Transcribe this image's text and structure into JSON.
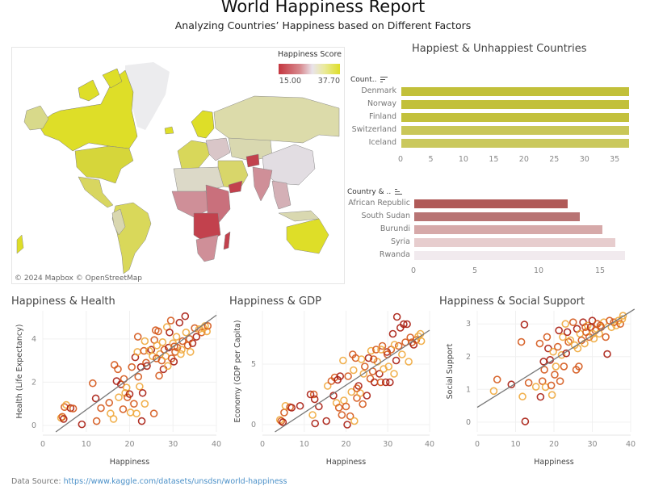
{
  "header": {
    "title": "World Happiness Report",
    "subtitle": "Analyzing Countries’ Happiness based on Different Factors"
  },
  "map": {
    "legend_title": "Happiness Score",
    "legend_min": "15.00",
    "legend_max": "37.70",
    "attribution": "© 2024 Mapbox  © OpenStreetMap",
    "colors": {
      "high": "#dede28",
      "midhigh": "#d8d98a",
      "mid": "#e3dfe3",
      "midlow": "#cf8f98",
      "low": "#c2414d",
      "nodata": "#ececee"
    }
  },
  "footer": {
    "label": "Data Source: ",
    "link": "https://www.kaggle.com/datasets/unsdsn/world-happiness"
  },
  "chart_data": [
    {
      "type": "bar",
      "title": "Happiest & Unhappiest Countries",
      "header": "Count..",
      "categories": [
        "Denmark",
        "Norway",
        "Finland",
        "Switzerland",
        "Iceland"
      ],
      "values": [
        37.7,
        37.7,
        37.7,
        37.6,
        37.6
      ],
      "xlim": [
        0,
        37.7
      ],
      "xticks": [
        "0",
        "5",
        "10",
        "15",
        "20",
        "25",
        "30",
        "35"
      ],
      "colors": [
        "#c2c03a",
        "#c2c03a",
        "#c3c13c",
        "#c9c758",
        "#cac85c"
      ]
    },
    {
      "type": "bar",
      "header": "Country & ..",
      "categories": [
        "African Republic",
        "South Sudan",
        "Burundi",
        "Syria",
        "Rwanda"
      ],
      "values": [
        12.5,
        13.5,
        15.3,
        16.4,
        17.2
      ],
      "xlim": [
        0,
        17.2
      ],
      "xticks": [
        "0",
        "5",
        "10",
        "15"
      ],
      "colors": [
        "#b05a58",
        "#b87474",
        "#d6a9a9",
        "#e7cdce",
        "#f1eaee"
      ]
    },
    {
      "type": "scatter",
      "title": "Happiness & Health",
      "xlabel": "Happiness",
      "ylabel": "Health (Life Expectancy)",
      "xlim": [
        0,
        40
      ],
      "ylim": [
        -0.3,
        5.3
      ],
      "xticks": [
        "0",
        "10",
        "20",
        "30",
        "40"
      ],
      "yticks": [
        "0",
        "2",
        "4"
      ],
      "trend": [
        [
          3,
          -0.3
        ],
        [
          40,
          5.1
        ]
      ],
      "points": [
        [
          4.2,
          0.35,
          2
        ],
        [
          4.5,
          0.4,
          1
        ],
        [
          4.8,
          0.3,
          0
        ],
        [
          5,
          0.85,
          1
        ],
        [
          5.4,
          0.95,
          2
        ],
        [
          6.4,
          0.8,
          0
        ],
        [
          7,
          0.78,
          1
        ],
        [
          9,
          0.05,
          0
        ],
        [
          11.5,
          1.95,
          1
        ],
        [
          12.2,
          1.25,
          0
        ],
        [
          12.4,
          0.2,
          1
        ],
        [
          13.4,
          0.8,
          1
        ],
        [
          15.3,
          1.05,
          1
        ],
        [
          15.6,
          0.55,
          2
        ],
        [
          16.3,
          0.3,
          2
        ],
        [
          16.5,
          2.8,
          1
        ],
        [
          17,
          2.05,
          0
        ],
        [
          17.3,
          2.6,
          1
        ],
        [
          17.5,
          1.3,
          2
        ],
        [
          18,
          1.9,
          0
        ],
        [
          18.5,
          0.75,
          1
        ],
        [
          18.7,
          2.15,
          1
        ],
        [
          19,
          1.5,
          2
        ],
        [
          19.3,
          1.75,
          2
        ],
        [
          19.5,
          1.3,
          1
        ],
        [
          20,
          1.45,
          0
        ],
        [
          20.2,
          0.6,
          2
        ],
        [
          20.5,
          2.7,
          1
        ],
        [
          21,
          1.0,
          1
        ],
        [
          21.3,
          3.15,
          0
        ],
        [
          21.6,
          0.55,
          2
        ],
        [
          21.8,
          3.4,
          2
        ],
        [
          21.9,
          4.1,
          1
        ],
        [
          22,
          2.25,
          1
        ],
        [
          22.3,
          1.8,
          2
        ],
        [
          22.6,
          2.7,
          0
        ],
        [
          22.8,
          0.2,
          0
        ],
        [
          23,
          1.5,
          0
        ],
        [
          23.3,
          3.45,
          1
        ],
        [
          23.5,
          3.9,
          2
        ],
        [
          23.5,
          1.0,
          2
        ],
        [
          23.8,
          2.9,
          1
        ],
        [
          24,
          2.75,
          0
        ],
        [
          25,
          3.5,
          0
        ],
        [
          25.3,
          3.2,
          2
        ],
        [
          25.6,
          0.55,
          1
        ],
        [
          25.7,
          3.95,
          1
        ],
        [
          26,
          4.4,
          1
        ],
        [
          26.3,
          3.7,
          2
        ],
        [
          26.6,
          4.35,
          1
        ],
        [
          26.8,
          2.3,
          1
        ],
        [
          27,
          3.3,
          2
        ],
        [
          27.4,
          3.0,
          1
        ],
        [
          27.8,
          2.6,
          0
        ],
        [
          28,
          3.5,
          1
        ],
        [
          28.3,
          3.2,
          2
        ],
        [
          28.6,
          4.55,
          2
        ],
        [
          28.8,
          2.75,
          2
        ],
        [
          29,
          3.6,
          0
        ],
        [
          29.2,
          4.3,
          0
        ],
        [
          29.5,
          4.85,
          1
        ],
        [
          29.7,
          3.1,
          1
        ],
        [
          30,
          3.8,
          2
        ],
        [
          30.2,
          2.95,
          0
        ],
        [
          30.5,
          3.4,
          1
        ],
        [
          30.8,
          4.1,
          2
        ],
        [
          31,
          3.6,
          1
        ],
        [
          31.5,
          4.75,
          0
        ],
        [
          31.8,
          3.3,
          2
        ],
        [
          32.2,
          3.9,
          1
        ],
        [
          32.8,
          5.05,
          0
        ],
        [
          33,
          4.3,
          2
        ],
        [
          33.4,
          3.7,
          1
        ],
        [
          34,
          3.4,
          2
        ],
        [
          34.5,
          3.8,
          0
        ],
        [
          35,
          4.5,
          1
        ],
        [
          35.4,
          4.1,
          0
        ],
        [
          36,
          4.45,
          2
        ],
        [
          36.6,
          4.3,
          1
        ],
        [
          37,
          4.5,
          2
        ],
        [
          37.4,
          4.6,
          2
        ],
        [
          37.8,
          4.35,
          2
        ],
        [
          38,
          4.6,
          1
        ],
        [
          24.5,
          3.45,
          2
        ],
        [
          26.2,
          3.1,
          1
        ],
        [
          27.6,
          3.85,
          2
        ],
        [
          30.3,
          3.65,
          1
        ],
        [
          32,
          3.5,
          2
        ],
        [
          33.8,
          4.0,
          1
        ]
      ]
    },
    {
      "type": "scatter",
      "title": "Happiness & GDP",
      "xlabel": "Happiness",
      "ylabel": "Economy (GDP per Capita)",
      "xlim": [
        0,
        40
      ],
      "ylim": [
        -0.6,
        9.4
      ],
      "xticks": [
        "0",
        "10",
        "20",
        "30",
        "40"
      ],
      "yticks": [
        "0",
        "5"
      ],
      "trend": [
        [
          3,
          -0.6
        ],
        [
          40,
          7.8
        ]
      ],
      "points": [
        [
          4.2,
          0.4,
          2
        ],
        [
          4.5,
          0.3,
          1
        ],
        [
          4.9,
          0.2,
          0
        ],
        [
          5.2,
          1.0,
          1
        ],
        [
          5.5,
          1.55,
          2
        ],
        [
          6.6,
          1.45,
          1
        ],
        [
          7,
          1.4,
          0
        ],
        [
          9,
          1.55,
          0
        ],
        [
          11.5,
          2.5,
          0
        ],
        [
          12,
          0.8,
          2
        ],
        [
          12.3,
          2.5,
          1
        ],
        [
          12.5,
          2.1,
          0
        ],
        [
          12.6,
          0.1,
          0
        ],
        [
          13.5,
          1.5,
          0
        ],
        [
          15.3,
          0.3,
          0
        ],
        [
          15.6,
          3.2,
          2
        ],
        [
          16.5,
          3.6,
          1
        ],
        [
          17,
          2.4,
          0
        ],
        [
          17.3,
          3.9,
          1
        ],
        [
          17.7,
          1.8,
          2
        ],
        [
          18,
          3.7,
          0
        ],
        [
          18.3,
          1.4,
          1
        ],
        [
          18.6,
          4.0,
          0
        ],
        [
          19,
          0.8,
          1
        ],
        [
          19.3,
          5.3,
          2
        ],
        [
          19.5,
          2.0,
          2
        ],
        [
          20,
          1.5,
          1
        ],
        [
          20.3,
          0.0,
          0
        ],
        [
          20.5,
          4.0,
          1
        ],
        [
          21,
          0.7,
          1
        ],
        [
          21.3,
          2.7,
          2
        ],
        [
          21.6,
          5.8,
          1
        ],
        [
          21.8,
          4.5,
          2
        ],
        [
          22,
          0.3,
          2
        ],
        [
          22.3,
          5.5,
          1
        ],
        [
          22.6,
          2.2,
          1
        ],
        [
          23,
          3.2,
          0
        ],
        [
          23.4,
          2.6,
          2
        ],
        [
          23.7,
          5.4,
          2
        ],
        [
          24,
          1.7,
          1
        ],
        [
          24.5,
          4.8,
          1
        ],
        [
          25,
          2.4,
          0
        ],
        [
          25.4,
          5.5,
          0
        ],
        [
          25.8,
          3.8,
          1
        ],
        [
          26,
          6.1,
          2
        ],
        [
          26.4,
          4.4,
          1
        ],
        [
          26.8,
          3.5,
          0
        ],
        [
          27.2,
          6.2,
          1
        ],
        [
          27.5,
          5.2,
          2
        ],
        [
          28,
          4.2,
          0
        ],
        [
          28.3,
          3.5,
          1
        ],
        [
          28.7,
          6.5,
          1
        ],
        [
          29,
          4.6,
          2
        ],
        [
          29.5,
          3.5,
          0
        ],
        [
          29.8,
          6.0,
          0
        ],
        [
          30.2,
          4.8,
          2
        ],
        [
          30.5,
          3.5,
          0
        ],
        [
          30.8,
          6.2,
          1
        ],
        [
          31.2,
          7.5,
          0
        ],
        [
          31.5,
          4.2,
          2
        ],
        [
          32,
          5.3,
          0
        ],
        [
          32.2,
          8.9,
          0
        ],
        [
          32.6,
          6.5,
          1
        ],
        [
          33,
          8.0,
          0
        ],
        [
          33.4,
          5.8,
          2
        ],
        [
          33.8,
          8.3,
          0
        ],
        [
          34.2,
          6.8,
          1
        ],
        [
          34.6,
          8.3,
          0
        ],
        [
          35,
          5.2,
          2
        ],
        [
          35.4,
          7.2,
          1
        ],
        [
          35.8,
          6.8,
          1
        ],
        [
          36.2,
          6.6,
          0
        ],
        [
          36.8,
          7.0,
          1
        ],
        [
          37.3,
          7.3,
          2
        ],
        [
          37.8,
          7.5,
          2
        ],
        [
          38,
          6.9,
          2
        ],
        [
          22.6,
          3.0,
          1
        ],
        [
          24.2,
          4.2,
          2
        ],
        [
          26.6,
          5.4,
          1
        ],
        [
          28.4,
          6.2,
          2
        ],
        [
          29.9,
          5.8,
          1
        ],
        [
          31.6,
          6.6,
          2
        ]
      ]
    },
    {
      "type": "scatter",
      "title": "Happiness & Social Support",
      "xlabel": "Happiness",
      "ylabel": "Social Support",
      "xlim": [
        0,
        40
      ],
      "ylim": [
        -0.3,
        3.4
      ],
      "xticks": [
        "0",
        "10",
        "20",
        "30",
        "40"
      ],
      "yticks": [
        "0",
        "1",
        "2",
        "3"
      ],
      "trend": [
        [
          0,
          0.45
        ],
        [
          41,
          3.45
        ]
      ],
      "points": [
        [
          4.3,
          0.95,
          2
        ],
        [
          5.2,
          1.3,
          1
        ],
        [
          8.9,
          1.15,
          0
        ],
        [
          11.5,
          2.45,
          1
        ],
        [
          11.8,
          0.78,
          2
        ],
        [
          12.3,
          2.98,
          0
        ],
        [
          12.5,
          0.02,
          0
        ],
        [
          13.4,
          1.2,
          1
        ],
        [
          15.3,
          1.08,
          2
        ],
        [
          16.3,
          2.4,
          1
        ],
        [
          16.5,
          0.77,
          0
        ],
        [
          17,
          1.25,
          1
        ],
        [
          17.3,
          1.85,
          0
        ],
        [
          17.5,
          1.6,
          1
        ],
        [
          17.8,
          1.07,
          2
        ],
        [
          18.2,
          2.6,
          1
        ],
        [
          18.5,
          2.25,
          0
        ],
        [
          19,
          1.9,
          0
        ],
        [
          19.3,
          1.12,
          1
        ],
        [
          19.5,
          0.83,
          2
        ],
        [
          19.8,
          2.15,
          2
        ],
        [
          20.2,
          1.45,
          1
        ],
        [
          20.5,
          1.7,
          2
        ],
        [
          21,
          2.3,
          1
        ],
        [
          21.3,
          2.8,
          0
        ],
        [
          21.6,
          1.25,
          1
        ],
        [
          22,
          2.05,
          2
        ],
        [
          22.3,
          2.6,
          2
        ],
        [
          22.6,
          1.7,
          1
        ],
        [
          23,
          3.0,
          2
        ],
        [
          23.2,
          2.1,
          0
        ],
        [
          23.5,
          2.75,
          0
        ],
        [
          23.8,
          2.45,
          1
        ],
        [
          25,
          3.05,
          1
        ],
        [
          25.4,
          2.35,
          2
        ],
        [
          25.8,
          1.6,
          1
        ],
        [
          26,
          2.85,
          0
        ],
        [
          26.5,
          1.7,
          1
        ],
        [
          26.8,
          2.7,
          2
        ],
        [
          27.2,
          2.5,
          1
        ],
        [
          27.6,
          3.05,
          0
        ],
        [
          28,
          2.4,
          2
        ],
        [
          28.4,
          2.75,
          1
        ],
        [
          28.8,
          2.95,
          2
        ],
        [
          29.2,
          2.6,
          1
        ],
        [
          29.6,
          2.9,
          0
        ],
        [
          30,
          3.1,
          0
        ],
        [
          30.4,
          2.55,
          2
        ],
        [
          30.8,
          2.8,
          1
        ],
        [
          31.3,
          3.0,
          1
        ],
        [
          31.8,
          2.7,
          2
        ],
        [
          32.3,
          2.9,
          1
        ],
        [
          33,
          3.05,
          2
        ],
        [
          33.5,
          2.6,
          1
        ],
        [
          33.9,
          2.08,
          0
        ],
        [
          34.5,
          3.1,
          1
        ],
        [
          35,
          2.9,
          2
        ],
        [
          35.6,
          3.05,
          1
        ],
        [
          36.2,
          2.95,
          2
        ],
        [
          36.8,
          3.1,
          2
        ],
        [
          37.3,
          3.0,
          1
        ],
        [
          37.8,
          3.15,
          2
        ],
        [
          38,
          3.25,
          2
        ],
        [
          24.3,
          2.5,
          2
        ],
        [
          26.2,
          2.25,
          2
        ],
        [
          28.2,
          2.9,
          1
        ],
        [
          30.1,
          2.7,
          2
        ],
        [
          32.1,
          2.95,
          1
        ]
      ]
    }
  ],
  "point_colors": [
    "#a81c10",
    "#d4571a",
    "#f0a93c"
  ]
}
